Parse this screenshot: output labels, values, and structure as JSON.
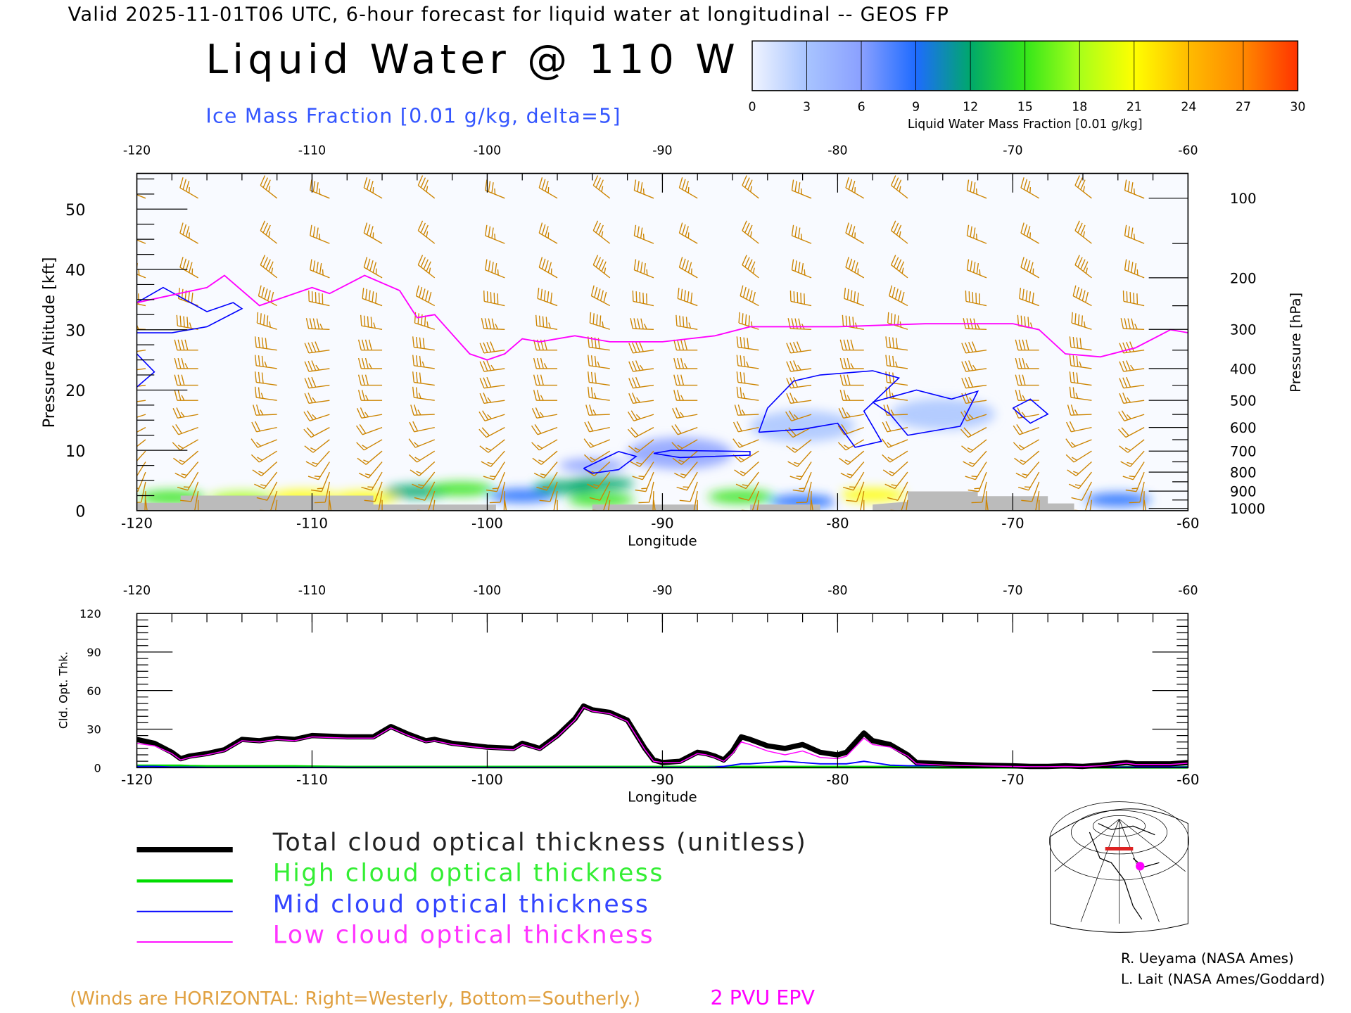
{
  "header": {
    "valid_line": "Valid 2025-11-01T06 UTC, 6-hour forecast for liquid water at longitudinal -- GEOS FP",
    "title": "Liquid Water @ 110 W",
    "subtitle": "Ice Mass Fraction [0.01 g/kg, delta=5]"
  },
  "colorbar": {
    "label": "Liquid Water Mass Fraction [0.01 g/kg]",
    "ticks": [
      "0",
      "3",
      "6",
      "9",
      "12",
      "15",
      "18",
      "21",
      "24",
      "27",
      "30"
    ],
    "colors": [
      "#f0f4ff",
      "#a8c4ff",
      "#8aa0ff",
      "#1e6bff",
      "#00a86b",
      "#33e61a",
      "#a8ff1a",
      "#ffff00",
      "#ffbb00",
      "#ff8800",
      "#ff3300"
    ]
  },
  "chart_data": [
    {
      "type": "heatmap",
      "title": "Liquid Water @ 110 W",
      "xlabel": "Longitude",
      "ylabel": "Pressure Altitude [kft]",
      "y2label": "Pressure [hPa]",
      "xlim": [
        -120,
        -60
      ],
      "ylim": [
        0,
        56
      ],
      "x_ticks": [
        "-120",
        "-110",
        "-100",
        "-90",
        "-80",
        "-70",
        "-60"
      ],
      "y_ticks": [
        "0",
        "10",
        "20",
        "30",
        "40",
        "50"
      ],
      "pressure_ticks": [
        "100",
        "200",
        "300",
        "400",
        "500",
        "600",
        "700",
        "800",
        "900",
        "1000"
      ],
      "colors": {
        "winds": "#cc8400",
        "ice_contour": "#0000ff",
        "epv": "#ff00ff",
        "terrain": "#bbbbbb"
      },
      "liquid_water_blobs": [
        {
          "lon": -118,
          "alt": 2.2,
          "value": 14
        },
        {
          "lon": -114,
          "alt": 2.0,
          "value": 16
        },
        {
          "lon": -110.5,
          "alt": 2.3,
          "value": 18
        },
        {
          "lon": -107,
          "alt": 2.1,
          "value": 18
        },
        {
          "lon": -104,
          "alt": 3.2,
          "value": 11
        },
        {
          "lon": -101.5,
          "alt": 3.6,
          "value": 13
        },
        {
          "lon": -98,
          "alt": 2.5,
          "value": 8
        },
        {
          "lon": -95.5,
          "alt": 3.9,
          "value": 10
        },
        {
          "lon": -93.5,
          "alt": 4.5,
          "value": 10
        },
        {
          "lon": -93.5,
          "alt": 1.8,
          "value": 12
        },
        {
          "lon": -94,
          "alt": 7.5,
          "value": 5
        },
        {
          "lon": -89,
          "alt": 9.5,
          "value": 3
        },
        {
          "lon": -85.5,
          "alt": 2.3,
          "value": 14
        },
        {
          "lon": -82,
          "alt": 1.5,
          "value": 8
        },
        {
          "lon": -78,
          "alt": 2.6,
          "value": 19
        },
        {
          "lon": -64,
          "alt": 1.8,
          "value": 6
        },
        {
          "lon": -82,
          "alt": 14,
          "value": 2
        },
        {
          "lon": -74,
          "alt": 16,
          "value": 1.5
        }
      ],
      "ice_contours": [
        [
          [
            -120,
            34.5
          ],
          [
            -118.5,
            37
          ],
          [
            -116,
            33
          ],
          [
            -114.5,
            34.5
          ],
          [
            -114,
            33.5
          ],
          [
            -116,
            30.5
          ],
          [
            -118,
            29.5
          ],
          [
            -120,
            29.5
          ]
        ],
        [
          [
            -120,
            26
          ],
          [
            -119,
            23
          ],
          [
            -120,
            20.5
          ]
        ],
        [
          [
            -94.5,
            7
          ],
          [
            -92.5,
            9.8
          ],
          [
            -91.5,
            9
          ],
          [
            -92.5,
            6.8
          ],
          [
            -94,
            6.2
          ],
          [
            -94.5,
            7
          ]
        ],
        [
          [
            -90.5,
            9.5
          ],
          [
            -89.5,
            10
          ],
          [
            -85,
            9.8
          ],
          [
            -85,
            9.2
          ],
          [
            -89,
            8.8
          ],
          [
            -90.5,
            9.5
          ]
        ],
        [
          [
            -84.5,
            13
          ],
          [
            -84,
            17
          ],
          [
            -82.5,
            21.5
          ],
          [
            -81,
            22.5
          ],
          [
            -78,
            23.2
          ],
          [
            -76.5,
            22
          ],
          [
            -78.5,
            16.5
          ],
          [
            -77.5,
            11.5
          ],
          [
            -79,
            10.5
          ],
          [
            -80,
            14.5
          ],
          [
            -82,
            13.5
          ],
          [
            -84.5,
            13
          ]
        ],
        [
          [
            -78,
            18
          ],
          [
            -75.5,
            20
          ],
          [
            -73.5,
            18.5
          ],
          [
            -72,
            19.8
          ],
          [
            -73,
            14
          ],
          [
            -76,
            12.5
          ],
          [
            -77,
            16
          ],
          [
            -78,
            18
          ]
        ],
        [
          [
            -70,
            17
          ],
          [
            -69,
            18.5
          ],
          [
            -68,
            16
          ],
          [
            -69,
            14.5
          ],
          [
            -70,
            17
          ]
        ]
      ],
      "epv_2pvu_line": [
        [
          -120,
          34.5
        ],
        [
          -116,
          37
        ],
        [
          -115,
          39
        ],
        [
          -113,
          34
        ],
        [
          -112,
          35
        ],
        [
          -110,
          37
        ],
        [
          -109,
          36
        ],
        [
          -107,
          39
        ],
        [
          -105,
          36.5
        ],
        [
          -104,
          32
        ],
        [
          -103,
          32.5
        ],
        [
          -101,
          26
        ],
        [
          -100,
          25
        ],
        [
          -99,
          26
        ],
        [
          -98,
          28.5
        ],
        [
          -97,
          28
        ],
        [
          -96,
          28.5
        ],
        [
          -95,
          29
        ],
        [
          -93,
          28
        ],
        [
          -90,
          28
        ],
        [
          -87,
          29
        ],
        [
          -85,
          30.5
        ],
        [
          -80,
          30.5
        ],
        [
          -75,
          31
        ],
        [
          -70,
          31
        ],
        [
          -68.5,
          30
        ],
        [
          -67,
          26
        ],
        [
          -65,
          25.5
        ],
        [
          -63,
          27
        ],
        [
          -61,
          30
        ],
        [
          -60,
          29.5
        ]
      ],
      "terrain": [
        [
          -120,
          1.3
        ],
        [
          -117.5,
          1.3
        ],
        [
          -117.5,
          2.5
        ],
        [
          -106.5,
          2.5
        ],
        [
          -106.5,
          1.0
        ],
        [
          -99.5,
          1.0
        ],
        [
          -99.5,
          0
        ],
        [
          -94,
          0
        ],
        [
          -94,
          1.0
        ],
        [
          -88,
          1.0
        ],
        [
          -88,
          0
        ],
        [
          -85,
          0
        ],
        [
          -85,
          1.0
        ],
        [
          -81,
          1.0
        ],
        [
          -81,
          0
        ],
        [
          -78,
          0
        ],
        [
          -78,
          1.0
        ],
        [
          -76,
          1.5
        ],
        [
          -76,
          3.2
        ],
        [
          -72,
          3.2
        ],
        [
          -72,
          2.4
        ],
        [
          -68,
          2.4
        ],
        [
          -68,
          1.2
        ],
        [
          -66.5,
          1.2
        ],
        [
          -66.5,
          0
        ],
        [
          -60,
          0
        ]
      ],
      "wind_barbs": {
        "longitudes": [
          -119.5,
          -116.5,
          -112,
          -109,
          -106,
          -103,
          -99,
          -96,
          -93,
          -90.5,
          -88,
          -84.5,
          -81.5,
          -78.5,
          -76,
          -71.5,
          -68.5,
          -65.5,
          -62.5
        ],
        "levels_hpa": [
          100,
          150,
          200,
          250,
          300,
          350,
          400,
          450,
          500,
          550,
          600,
          650,
          700,
          750,
          800,
          850,
          900,
          950
        ],
        "speed_kt": [
          35,
          35,
          45,
          50,
          45,
          40,
          35,
          30,
          25,
          25,
          20,
          15,
          15,
          15,
          15,
          10,
          10,
          10
        ],
        "direction_deg": [
          300,
          300,
          300,
          290,
          280,
          270,
          270,
          270,
          270,
          260,
          250,
          240,
          230,
          220,
          210,
          200,
          190,
          180
        ]
      }
    },
    {
      "type": "line",
      "xlabel": "Longitude",
      "ylabel": "Cld. Opt. Thk.",
      "xlim": [
        -120,
        -60
      ],
      "ylim": [
        0,
        120
      ],
      "x_ticks": [
        "-120",
        "-110",
        "-100",
        "-90",
        "-80",
        "-70",
        "-60"
      ],
      "y_ticks": [
        "0",
        "30",
        "60",
        "90",
        "120"
      ],
      "x": [
        -120,
        -119,
        -118,
        -117.5,
        -117,
        -116,
        -115,
        -114,
        -113,
        -112,
        -111,
        -110,
        -108,
        -106.5,
        -105.5,
        -104.5,
        -103.5,
        -103,
        -102,
        -100,
        -98.5,
        -98,
        -97,
        -96,
        -95,
        -94.5,
        -94,
        -93,
        -92,
        -91,
        -90.5,
        -90,
        -89,
        -88,
        -87.5,
        -87,
        -86.5,
        -86,
        -85.5,
        -85,
        -84,
        -83,
        -82,
        -81,
        -80,
        -79.5,
        -78.5,
        -78,
        -77,
        -76,
        -75.5,
        -74,
        -72,
        -70,
        -69,
        -68,
        -67,
        -66,
        -65,
        -63.5,
        -63,
        -61,
        -60
      ],
      "series": [
        {
          "name": "Total cloud optical thickness (unitless)",
          "color": "#000000",
          "values": [
            22,
            19,
            12,
            7,
            9,
            11,
            14,
            22,
            21,
            23,
            22,
            25,
            24,
            24,
            32,
            26,
            21,
            22,
            19,
            16,
            15,
            19,
            15,
            25,
            38,
            48,
            45,
            43,
            37,
            15,
            6,
            4,
            5,
            12,
            11,
            9,
            6,
            13,
            24,
            22,
            17,
            15,
            18,
            12,
            10,
            12,
            27,
            21,
            18,
            10,
            4,
            3,
            2,
            1.5,
            1,
            1,
            1.5,
            1,
            2,
            4,
            3,
            3,
            4
          ]
        },
        {
          "name": "High cloud optical thickness",
          "color": "#00dd00",
          "values": [
            1.5,
            1.5,
            1.5,
            1.5,
            1.2,
            1,
            1,
            1,
            1,
            1,
            1,
            0.8,
            0.5,
            0.5,
            0.5,
            0.5,
            0.5,
            0.5,
            0.5,
            0.5,
            0.5,
            0.5,
            0.5,
            0.5,
            0.5,
            0.5,
            0.5,
            0.5,
            0.5,
            0.5,
            0.5,
            0.5,
            0.5,
            0.5,
            0.5,
            0.5,
            0.5,
            0.5,
            0.5,
            0.5,
            0.5,
            0.5,
            0.5,
            0.5,
            0.5,
            0.5,
            0.5,
            0.5,
            0.5,
            0.5,
            0.5,
            0.3,
            0.3,
            0.3,
            0.3,
            0.3,
            0.3,
            0.3,
            0.3,
            0.3,
            0.3,
            0.3,
            0.3
          ]
        },
        {
          "name": "Mid cloud optical thickness",
          "color": "#0000ff",
          "values": [
            1,
            1,
            0.5,
            0.5,
            0.5,
            0.3,
            0.3,
            0.3,
            0.3,
            0.3,
            0.3,
            0.3,
            0.3,
            0.3,
            0.3,
            0.3,
            0.3,
            0.3,
            0.3,
            0.3,
            0.3,
            0.3,
            0.3,
            0.3,
            0.3,
            0.3,
            0.3,
            0.3,
            0.3,
            0.3,
            0.3,
            0.3,
            0.3,
            0.3,
            0.3,
            0.5,
            1,
            2,
            3,
            3,
            4,
            5,
            4,
            3,
            3,
            3,
            5,
            4,
            2,
            1.5,
            1.5,
            1.5,
            1,
            1,
            1,
            0.5,
            0.5,
            0.5,
            0.5,
            0.5,
            0.5,
            0.5,
            0.5
          ]
        },
        {
          "name": "Low cloud optical thickness",
          "color": "#ff00ff",
          "values": [
            19,
            17,
            11,
            6,
            8,
            10,
            13,
            21,
            20,
            22,
            21,
            24,
            23,
            23,
            31,
            25,
            20,
            21,
            18,
            15,
            14,
            18,
            14,
            24,
            37,
            47,
            44,
            42,
            36,
            14,
            5,
            4,
            4,
            11,
            10,
            8,
            5,
            11,
            20,
            18,
            13,
            10,
            13,
            8,
            7,
            9,
            23,
            18,
            16,
            9,
            3,
            2,
            1.5,
            1,
            0.8,
            0.8,
            1,
            0.8,
            1.5,
            3.5,
            2.5,
            2.5,
            3.5
          ]
        }
      ]
    }
  ],
  "legend": {
    "total": "Total cloud optical thickness (unitless)",
    "high": "High cloud optical thickness",
    "mid": "Mid cloud optical thickness",
    "low": "Low cloud optical thickness"
  },
  "footer": {
    "winds_note": "(Winds are HORIZONTAL: Right=Westerly, Bottom=Southerly.)",
    "epv_label": "2 PVU EPV",
    "credit1": "R. Ueyama (NASA Ames)",
    "credit2": "L. Lait (NASA Ames/Goddard)"
  }
}
